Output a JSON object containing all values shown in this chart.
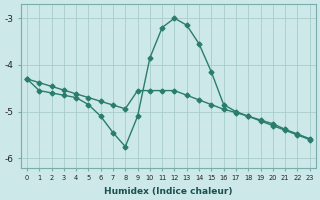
{
  "x": [
    0,
    1,
    2,
    3,
    4,
    5,
    6,
    7,
    8,
    9,
    10,
    11,
    12,
    13,
    14,
    15,
    16,
    17,
    18,
    19,
    20,
    21,
    22,
    23
  ],
  "line_flat": [
    -4.3,
    -4.38,
    -4.46,
    -4.54,
    -4.62,
    -4.7,
    -4.78,
    -4.86,
    -4.94,
    -4.55,
    -4.55,
    -4.55,
    -4.55,
    -4.65,
    -4.75,
    -4.85,
    -4.95,
    -5.02,
    -5.1,
    -5.18,
    -5.26,
    -5.38,
    -5.48,
    -5.58
  ],
  "line_wavy": [
    -4.3,
    -4.55,
    -4.6,
    -4.65,
    -4.7,
    -4.85,
    -5.1,
    -5.45,
    -5.75,
    -5.1,
    -3.85,
    -3.2,
    -3.0,
    -3.15,
    -3.55,
    -4.15,
    -4.85,
    -5.0,
    -5.1,
    -5.2,
    -5.3,
    -5.4,
    -5.5,
    -5.6
  ],
  "color": "#2a7d6e",
  "bg_color": "#cce8e8",
  "grid_color": "#aacccc",
  "xlabel": "Humidex (Indice chaleur)",
  "ylim": [
    -6.2,
    -2.7
  ],
  "xlim": [
    -0.5,
    23.5
  ],
  "yticks": [
    -6,
    -5,
    -4,
    -3
  ],
  "xticks": [
    0,
    1,
    2,
    3,
    4,
    5,
    6,
    7,
    8,
    9,
    10,
    11,
    12,
    13,
    14,
    15,
    16,
    17,
    18,
    19,
    20,
    21,
    22,
    23
  ],
  "marker": "D",
  "markersize": 2.5,
  "linewidth": 1.0
}
